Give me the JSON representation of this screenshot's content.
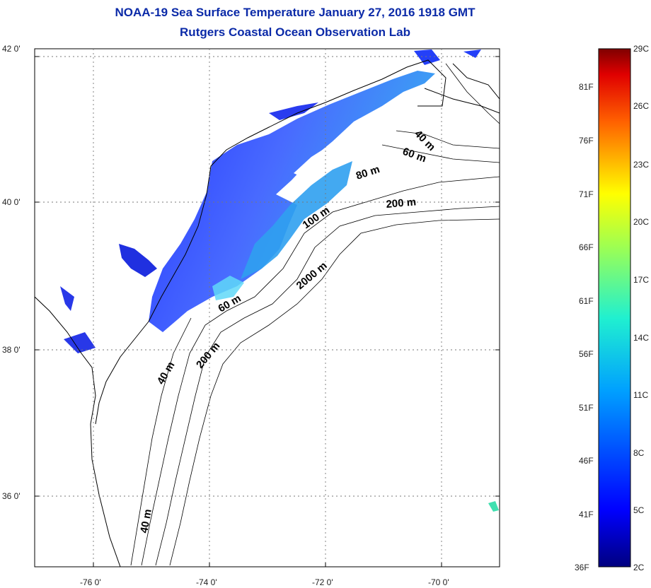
{
  "title": "NOAA-19 Sea Surface Temperature January 27, 2016 1918 GMT",
  "subtitle": "Rutgers Coastal Ocean Observation Lab",
  "map": {
    "lat_labels": [
      "42 0'",
      "40 0'",
      "38 0'",
      "36 0'"
    ],
    "lon_labels": [
      "-76 0'",
      "-74 0'",
      "-72 0'",
      "-70 0'"
    ],
    "contour_labels": [
      "40 m",
      "60 m",
      "80 m",
      "200 m",
      "100 m",
      "2000 m",
      "60 m",
      "200 m",
      "40 m",
      "40 m"
    ]
  },
  "colorbar": {
    "fahrenheit": [
      "81F",
      "76F",
      "71F",
      "66F",
      "61F",
      "56F",
      "51F",
      "46F",
      "41F",
      "36F"
    ],
    "celsius": [
      "29C",
      "26C",
      "23C",
      "20C",
      "17C",
      "14C",
      "11C",
      "8C",
      "5C",
      "2C"
    ]
  },
  "colors": {
    "title": "#0b2aa8",
    "land": "#ffffff",
    "gridline": "#555555",
    "contour": "#000000"
  }
}
